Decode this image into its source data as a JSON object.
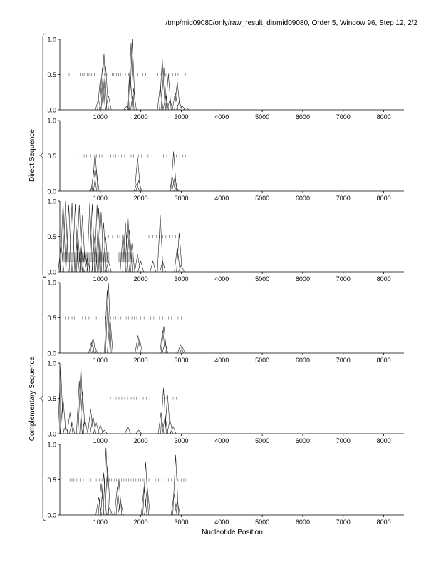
{
  "header": {
    "title": "/tmp/mid09080/only/raw_result_dir/mid09080, Order 5, Window 96, Step 12, 2/2"
  },
  "chart_data": {
    "type": "line",
    "xlabel": "Nucleotide Position",
    "xlim": [
      0,
      8500
    ],
    "ylim": [
      0,
      1.0
    ],
    "x_ticks": [
      1000,
      2000,
      3000,
      4000,
      5000,
      6000,
      7000,
      8000
    ],
    "y_ticks": [
      0.0,
      0.5,
      1.0
    ],
    "groups": [
      {
        "label": "Direct Sequence",
        "panels": [
          0,
          1,
          2
        ]
      },
      {
        "label": "Complementary Sequence",
        "panels": [
          3,
          4,
          5
        ]
      }
    ],
    "panels": [
      {
        "peaks": [
          [
            950,
            0.15
          ],
          [
            1000,
            0.45
          ],
          [
            1050,
            0.6
          ],
          [
            1090,
            0.8
          ],
          [
            1130,
            0.62
          ],
          [
            1200,
            0.2
          ],
          [
            1650,
            0.05
          ],
          [
            1730,
            0.55
          ],
          [
            1760,
            0.95
          ],
          [
            1790,
            1.0
          ],
          [
            1820,
            0.3
          ],
          [
            2480,
            0.35
          ],
          [
            2530,
            0.72
          ],
          [
            2570,
            0.6
          ],
          [
            2620,
            0.2
          ],
          [
            2680,
            0.5
          ],
          [
            2720,
            0.15
          ],
          [
            2850,
            0.25
          ],
          [
            2900,
            0.4
          ],
          [
            2950,
            0.12
          ],
          [
            3020,
            0.06
          ],
          [
            3120,
            0.03
          ]
        ],
        "marks": [
          80,
          230,
          450,
          500,
          560,
          600,
          680,
          720,
          780,
          850,
          940,
          990,
          1040,
          1100,
          1160,
          1240,
          1290,
          1330,
          1400,
          1450,
          1500,
          1560,
          1620,
          1700,
          1790,
          1860,
          1930,
          1980,
          2050,
          2120,
          2420,
          2480,
          2530,
          2620,
          2690,
          2790,
          2860,
          2920,
          3100
        ]
      },
      {
        "peaks": [
          [
            800,
            0.05
          ],
          [
            840,
            0.3
          ],
          [
            870,
            0.56
          ],
          [
            900,
            0.3
          ],
          [
            1900,
            0.1
          ],
          [
            1920,
            0.48
          ],
          [
            1950,
            0.15
          ],
          [
            2780,
            0.2
          ],
          [
            2810,
            0.56
          ],
          [
            2840,
            0.2
          ],
          [
            2880,
            0.05
          ]
        ],
        "marks": [
          330,
          400,
          600,
          660,
          760,
          910,
          980,
          1040,
          1120,
          1190,
          1260,
          1320,
          1380,
          1440,
          1520,
          1600,
          1680,
          1760,
          1820,
          1940,
          2020,
          2100,
          2180,
          2560,
          2640,
          2720,
          2880,
          2960,
          3040,
          3100
        ]
      },
      {
        "peaks": [
          [
            30,
            0.4
          ],
          [
            80,
            0.98
          ],
          [
            140,
            1.0
          ],
          [
            220,
            0.95
          ],
          [
            300,
            0.98
          ],
          [
            380,
            0.96
          ],
          [
            440,
            0.6
          ],
          [
            480,
            0.95
          ],
          [
            520,
            0.4
          ],
          [
            560,
            0.8
          ],
          [
            620,
            0.3
          ],
          [
            680,
            0.2
          ],
          [
            740,
            0.98
          ],
          [
            800,
            0.96
          ],
          [
            860,
            0.5
          ],
          [
            920,
            0.95
          ],
          [
            960,
            0.9
          ],
          [
            1020,
            0.85
          ],
          [
            1080,
            0.7
          ],
          [
            1130,
            0.5
          ],
          [
            1200,
            0.15
          ],
          [
            1560,
            0.55
          ],
          [
            1620,
            0.7
          ],
          [
            1680,
            0.82
          ],
          [
            1720,
            0.6
          ],
          [
            1780,
            0.4
          ],
          [
            1920,
            0.25
          ],
          [
            2000,
            0.15
          ],
          [
            2300,
            0.15
          ],
          [
            2480,
            0.8
          ],
          [
            2540,
            0.15
          ],
          [
            2900,
            0.35
          ],
          [
            2950,
            0.55
          ],
          [
            3000,
            0.1
          ]
        ],
        "marks": [
          1200,
          1240,
          1300,
          1360,
          1420,
          1480,
          1540,
          1600,
          1660,
          2200,
          2300,
          2380,
          2460,
          2540,
          2620,
          2700,
          2780,
          2860,
          2940,
          3020
        ],
        "bars": [
          {
            "x0": 50,
            "x1": 1220,
            "y0": 0.14,
            "y1": 0.28
          },
          {
            "x0": 1440,
            "x1": 1820,
            "y0": 0.14,
            "y1": 0.28
          }
        ]
      },
      {
        "peaks": [
          [
            780,
            0.15
          ],
          [
            820,
            0.22
          ],
          [
            860,
            0.1
          ],
          [
            1170,
            0.9
          ],
          [
            1200,
            1.0
          ],
          [
            1240,
            0.5
          ],
          [
            1930,
            0.25
          ],
          [
            1970,
            0.2
          ],
          [
            2540,
            0.32
          ],
          [
            2570,
            0.38
          ],
          [
            2600,
            0.15
          ],
          [
            2980,
            0.12
          ],
          [
            3030,
            0.08
          ]
        ],
        "marks": [
          130,
          220,
          300,
          360,
          450,
          560,
          640,
          720,
          820,
          900,
          990,
          1060,
          1130,
          1200,
          1260,
          1320,
          1380,
          1440,
          1510,
          1560,
          1640,
          1700,
          1780,
          1840,
          1900,
          2000,
          2080,
          2160,
          2240,
          2320,
          2400,
          2460,
          2540,
          2600,
          2680,
          2760,
          2840,
          2920,
          3000
        ]
      },
      {
        "peaks": [
          [
            20,
            0.95
          ],
          [
            80,
            0.5
          ],
          [
            140,
            0.1
          ],
          [
            250,
            0.3
          ],
          [
            300,
            0.15
          ],
          [
            480,
            0.75
          ],
          [
            520,
            0.95
          ],
          [
            560,
            0.6
          ],
          [
            620,
            0.2
          ],
          [
            760,
            0.35
          ],
          [
            820,
            0.25
          ],
          [
            900,
            0.15
          ],
          [
            1000,
            0.12
          ],
          [
            1100,
            0.05
          ],
          [
            1680,
            0.1
          ],
          [
            1950,
            0.05
          ],
          [
            2500,
            0.3
          ],
          [
            2560,
            0.65
          ],
          [
            2600,
            0.25
          ],
          [
            2660,
            0.55
          ],
          [
            2720,
            0.2
          ],
          [
            2800,
            0.1
          ]
        ],
        "marks": [
          1250,
          1310,
          1390,
          1460,
          1530,
          1600,
          1670,
          1760,
          1830,
          1890,
          2060,
          2140,
          2220,
          2580,
          2640,
          2720,
          2800,
          2880
        ]
      },
      {
        "peaks": [
          [
            960,
            0.25
          ],
          [
            1020,
            0.45
          ],
          [
            1080,
            0.6
          ],
          [
            1140,
            0.95
          ],
          [
            1180,
            0.7
          ],
          [
            1230,
            0.1
          ],
          [
            1420,
            0.4
          ],
          [
            1460,
            0.5
          ],
          [
            1500,
            0.2
          ],
          [
            2080,
            0.4
          ],
          [
            2120,
            0.75
          ],
          [
            2160,
            0.4
          ],
          [
            2820,
            0.3
          ],
          [
            2860,
            0.85
          ],
          [
            2900,
            0.2
          ]
        ],
        "marks": [
          200,
          250,
          300,
          350,
          420,
          500,
          580,
          700,
          760,
          900,
          980,
          1040,
          1100,
          1160,
          1220,
          1280,
          1340,
          1400,
          1460,
          1520,
          1580,
          1640,
          1700,
          1760,
          1820,
          1880,
          1940,
          2000,
          2060,
          2200,
          2280,
          2360,
          2440,
          2520,
          2600,
          2680,
          2760,
          2840,
          2920,
          3000,
          3060,
          3100
        ]
      }
    ]
  }
}
